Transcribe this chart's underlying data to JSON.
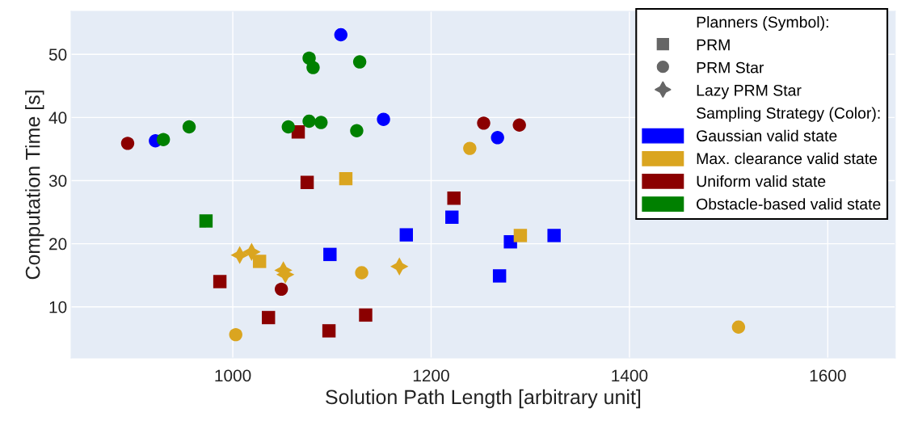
{
  "chart_data": {
    "type": "scatter",
    "xlabel": "Solution Path Length [arbitrary unit]",
    "ylabel": "Computation Time [s]",
    "xlim": [
      837,
      1668
    ],
    "ylim": [
      1.9,
      56.8
    ],
    "xticks": [
      1000,
      1200,
      1400,
      1600
    ],
    "yticks": [
      10,
      20,
      30,
      40,
      50
    ],
    "grid": true,
    "legend": "top right",
    "legend_title": [
      "Planners (Symbol):",
      "Sampling Strategy (Color):"
    ],
    "annotations": [
      "PRM",
      "PRM Star",
      "Lazy PRM Star"
    ],
    "series": [
      {
        "name": "Gaussian valid state",
        "color": "#0000ff",
        "marker": "square",
        "x": [
          1098,
          1175,
          1221,
          1280,
          1269,
          1324
        ],
        "values": [
          18.3,
          21.4,
          24.2,
          20.3,
          14.9,
          21.3
        ]
      },
      {
        "color": "#0000ff",
        "marker": "circle",
        "x": [
          1109,
          922,
          1152,
          1267
        ],
        "values": [
          53.1,
          36.3,
          39.7,
          36.8
        ]
      },
      {
        "name": "Max. clearance valid state",
        "color": "#daa520",
        "marker": "square",
        "x": [
          1114,
          1027,
          1290
        ],
        "values": [
          30.3,
          17.2,
          21.3
        ]
      },
      {
        "color": "#daa520",
        "marker": "circle",
        "x": [
          1239,
          1130,
          1003,
          1510
        ],
        "values": [
          35.1,
          15.4,
          5.6,
          6.8
        ]
      },
      {
        "color": "#daa520",
        "marker": "star",
        "x": [
          1007,
          1019,
          1051,
          1053,
          1168
        ],
        "values": [
          18.2,
          18.7,
          15.8,
          15.1,
          16.4
        ]
      },
      {
        "name": "Uniform valid state",
        "color": "#8b0000",
        "marker": "square",
        "x": [
          1066,
          1075,
          987,
          1036,
          1097,
          1134,
          1223
        ],
        "values": [
          37.7,
          29.7,
          14.0,
          8.3,
          6.2,
          8.7,
          27.2
        ]
      },
      {
        "color": "#8b0000",
        "marker": "circle",
        "x": [
          894,
          1049,
          1253,
          1289
        ],
        "values": [
          35.9,
          12.8,
          39.1,
          38.8
        ]
      },
      {
        "name": "Obstacle-based valid state",
        "color": "#008000",
        "marker": "square",
        "x": [
          973
        ],
        "values": [
          23.6
        ]
      },
      {
        "color": "#008000",
        "marker": "circle",
        "x": [
          930,
          956,
          1077,
          1081,
          1128,
          1056,
          1077,
          1089,
          1125
        ],
        "values": [
          36.5,
          38.5,
          49.4,
          47.9,
          48.8,
          38.5,
          39.4,
          39.2,
          37.9
        ]
      }
    ]
  }
}
